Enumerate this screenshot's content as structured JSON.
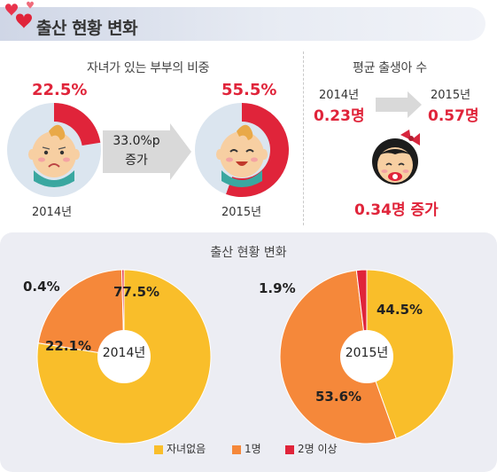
{
  "header": {
    "title": "출산 현황 변화"
  },
  "couples": {
    "title": "자녀가 있는 부부의 비중",
    "left": {
      "pct_label": "22.5%",
      "share": 0.225,
      "year": "2014년"
    },
    "right": {
      "pct_label": "55.5%",
      "share": 0.555,
      "year": "2015년"
    },
    "arrow": {
      "line1": "33.0%p",
      "line2": "증가"
    }
  },
  "avg_births": {
    "title": "평균 출생아 수",
    "left": {
      "year": "2014년",
      "value": "0.23명"
    },
    "right": {
      "year": "2015년",
      "value": "0.57명"
    },
    "increase": "0.34명 증가"
  },
  "chart_data": {
    "type": "pie",
    "title": "출산 현황 변화",
    "categories": [
      "자녀없음",
      "1명",
      "2명 이상"
    ],
    "colors": {
      "none": "#f9be2a",
      "one": "#f5883a",
      "two_plus": "#e0243a"
    },
    "charts": [
      {
        "center": "2014년",
        "values": [
          77.5,
          22.1,
          0.4
        ],
        "labels": [
          "77.5%",
          "22.1%",
          "0.4%"
        ]
      },
      {
        "center": "2015년",
        "values": [
          44.5,
          53.6,
          1.9
        ],
        "labels": [
          "44.5%",
          "53.6%",
          "1.9%"
        ]
      }
    ]
  },
  "legend": [
    {
      "label": "자녀없음",
      "color": "#f9be2a"
    },
    {
      "label": "1명",
      "color": "#f5883a"
    },
    {
      "label": "2명 이상",
      "color": "#e0243a"
    }
  ],
  "colors": {
    "accent_red": "#e0243a",
    "pie_light": "#dbe5ef",
    "panel": "#ecedf3"
  },
  "icons": {
    "header": "hearts-icon",
    "arrow": "right-arrow-icon",
    "baby_sad": "sad-baby-icon",
    "baby_happy": "happy-baby-icon",
    "baby_girl": "baby-girl-icon"
  }
}
